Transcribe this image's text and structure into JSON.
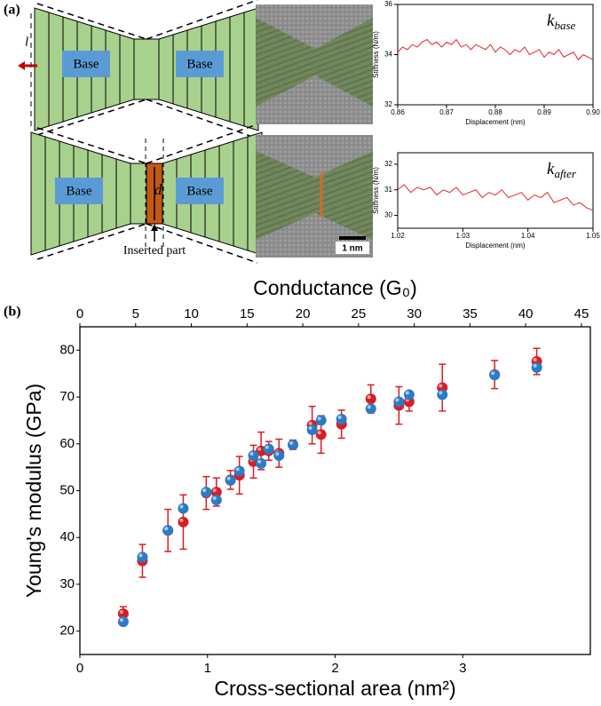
{
  "diagram": {
    "panel_a": "(a)",
    "panel_b": "(b)",
    "base_labels": [
      "Base",
      "Base",
      "Base",
      "Base"
    ],
    "length_symbol": "l",
    "insert_symbol": "d",
    "inserted_part": "Inserted part",
    "scale_bar": "1 nm"
  },
  "chart_data": [
    {
      "type": "line",
      "annotation": {
        "symbol": "k",
        "subscript": "base"
      },
      "xlabel": "Displacement (nm)",
      "ylabel": "Stiffness (N/m)",
      "x": [
        0.86,
        0.861,
        0.862,
        0.863,
        0.864,
        0.865,
        0.866,
        0.867,
        0.868,
        0.869,
        0.87,
        0.871,
        0.872,
        0.873,
        0.874,
        0.875,
        0.876,
        0.877,
        0.878,
        0.879,
        0.88,
        0.881,
        0.882,
        0.883,
        0.884,
        0.885,
        0.886,
        0.887,
        0.888,
        0.889,
        0.89,
        0.891,
        0.892,
        0.893,
        0.894,
        0.895,
        0.896,
        0.897,
        0.898,
        0.899,
        0.9
      ],
      "values": [
        34.1,
        34.3,
        34.2,
        34.4,
        34.3,
        34.5,
        34.6,
        34.4,
        34.5,
        34.3,
        34.5,
        34.4,
        34.6,
        34.3,
        34.4,
        34.2,
        34.4,
        34.3,
        34.2,
        34.4,
        34.1,
        34.3,
        34.2,
        34.0,
        34.2,
        34.1,
        34.3,
        34.0,
        34.1,
        34.2,
        33.9,
        34.1,
        34.0,
        34.2,
        33.9,
        34.0,
        34.1,
        33.8,
        34.0,
        33.9,
        33.8
      ],
      "color": "#e0262b",
      "xlim": [
        0.86,
        0.9
      ],
      "xticks": [
        0.86,
        0.87,
        0.88,
        0.89,
        {
          "value": 0.9,
          "label": "0.90"
        }
      ],
      "ylim": [
        32,
        36
      ],
      "yticks": [
        32,
        34,
        36
      ]
    },
    {
      "type": "line",
      "annotation": {
        "symbol": "k",
        "subscript": "after"
      },
      "xlabel": "Displacement (nm)",
      "ylabel": "Stiffness (N/m)",
      "x": [
        1.02,
        1.021,
        1.022,
        1.023,
        1.024,
        1.025,
        1.026,
        1.027,
        1.028,
        1.029,
        1.03,
        1.031,
        1.032,
        1.033,
        1.034,
        1.035,
        1.036,
        1.037,
        1.038,
        1.039,
        1.04,
        1.041,
        1.042,
        1.043,
        1.044,
        1.045,
        1.046,
        1.047,
        1.048,
        1.049,
        1.05
      ],
      "values": [
        31.0,
        31.2,
        30.9,
        31.1,
        31.0,
        31.1,
        30.8,
        31.0,
        30.9,
        31.1,
        30.8,
        30.9,
        31.0,
        30.7,
        30.9,
        30.8,
        31.0,
        30.7,
        30.8,
        30.9,
        30.6,
        30.8,
        30.7,
        30.9,
        30.5,
        30.6,
        30.7,
        30.4,
        30.5,
        30.3,
        30.2
      ],
      "color": "#e0262b",
      "xlim": [
        1.02,
        1.05
      ],
      "xticks": [
        1.02,
        1.03,
        1.04,
        1.05
      ],
      "ylim": [
        29.5,
        32.45
      ],
      "yticks": [
        30,
        31,
        32
      ]
    },
    {
      "type": "scatter",
      "xlabel": "Cross-sectional area (nm²)",
      "ylabel": "Young's modulus (GPa)",
      "x2label": "Conductance (G₀)",
      "x": [
        0.34,
        0.49,
        0.69,
        0.81,
        0.99,
        1.07,
        1.18,
        1.25,
        1.36,
        1.42,
        1.48,
        1.56,
        1.67,
        1.82,
        1.89,
        2.05,
        2.28,
        2.5,
        2.58,
        2.84,
        3.25,
        3.58
      ],
      "series": [
        {
          "color": "#d81e24",
          "values": [
            23.7,
            35.0,
            41.5,
            43.3,
            49.5,
            49.7,
            52.3,
            53.3,
            56.2,
            58.5,
            58.5,
            58.0,
            59.8,
            64.0,
            62.0,
            64.2,
            69.6,
            68.2,
            69.0,
            72.0,
            74.8,
            77.6
          ],
          "errors": [
            1.5,
            3.5,
            4.5,
            5.8,
            3.5,
            3.0,
            2.0,
            4.0,
            3.5,
            4.0,
            2.0,
            3.0,
            1.0,
            4.0,
            4.0,
            3.0,
            3.0,
            4.0,
            2.0,
            5.0,
            3.0,
            2.8
          ]
        },
        {
          "color": "#2b7cc6",
          "values": [
            22.0,
            35.8,
            41.5,
            46.2,
            49.7,
            48.0,
            52.2,
            54.2,
            57.5,
            55.8,
            58.9,
            57.5,
            59.8,
            63.0,
            65.0,
            65.3,
            67.5,
            69.0,
            70.5,
            70.5,
            74.7,
            76.3
          ]
        }
      ],
      "xlim": [
        0,
        4
      ],
      "xticks": [
        0,
        1,
        2,
        3
      ],
      "ylim": [
        15,
        85
      ],
      "yticks": [
        20,
        30,
        40,
        50,
        60,
        70,
        80
      ],
      "x2lim": [
        0,
        45.8
      ],
      "x2ticks": [
        0,
        5,
        10,
        15,
        20,
        25,
        30,
        35,
        40,
        45
      ]
    }
  ]
}
